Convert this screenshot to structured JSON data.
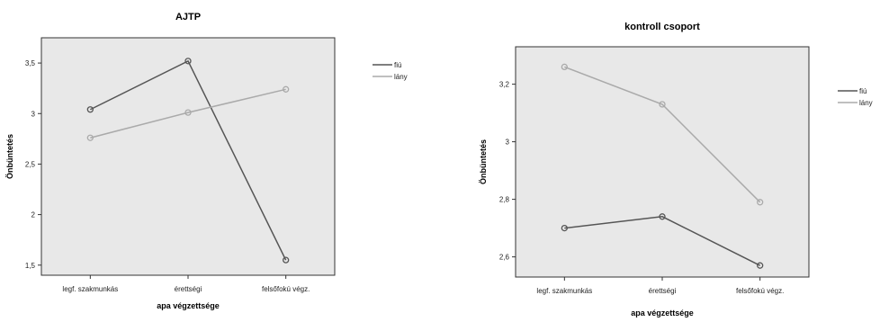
{
  "colors": {
    "fiu": "#555555",
    "lany": "#aaaaaa",
    "plot_bg": "#e8e8e8",
    "frame": "#333333"
  },
  "chart_data": [
    {
      "type": "line",
      "title": "AJTP",
      "xlabel": "apa végzettsége",
      "ylabel": "Önbüntetés",
      "categories": [
        "legf. szakmunkás",
        "érettségi",
        "felsőfokú végz."
      ],
      "ylim": [
        1.4,
        3.75
      ],
      "yticks": [
        1.5,
        2,
        2.5,
        3,
        3.5
      ],
      "ytick_labels": [
        "1,5",
        "2",
        "2,5",
        "3",
        "3,5"
      ],
      "legend_position": "right",
      "series": [
        {
          "name": "fiú",
          "values": [
            3.04,
            3.52,
            1.55
          ],
          "color": "#555555"
        },
        {
          "name": "lány",
          "values": [
            2.76,
            3.01,
            3.24
          ],
          "color": "#aaaaaa"
        }
      ]
    },
    {
      "type": "line",
      "title": "kontroll csoport",
      "xlabel": "apa végzettsége",
      "ylabel": "Önbüntetés",
      "categories": [
        "legf. szakmunkás",
        "érettségi",
        "felsőfokú végz."
      ],
      "ylim": [
        2.53,
        3.33
      ],
      "yticks": [
        2.6,
        2.8,
        3.0,
        3.2
      ],
      "ytick_labels": [
        "2,6",
        "2,8",
        "3",
        "3,2"
      ],
      "legend_position": "right",
      "series": [
        {
          "name": "fiú",
          "values": [
            2.7,
            2.74,
            2.57
          ],
          "color": "#555555"
        },
        {
          "name": "lány",
          "values": [
            3.26,
            3.13,
            2.79
          ],
          "color": "#aaaaaa"
        }
      ]
    }
  ]
}
